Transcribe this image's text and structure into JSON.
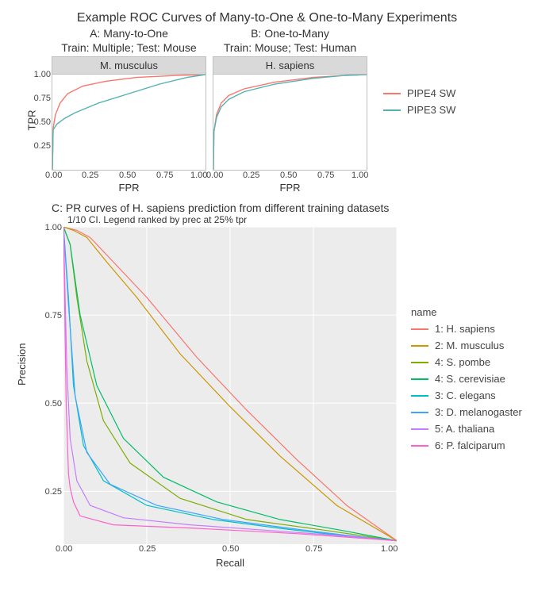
{
  "main_title": "Example ROC Curves of Many-to-One & One-to-Many Experiments",
  "panelA": {
    "header_line1": "A: Many-to-One",
    "header_line2": "Train: Multiple; Test: Mouse",
    "strip": "M. musculus",
    "xlab": "FPR",
    "xlim": [
      0,
      1
    ],
    "ylim": [
      0,
      1
    ],
    "xticks": [
      0.0,
      0.25,
      0.5,
      0.75,
      1.0
    ],
    "yticks": [
      0.25,
      0.5,
      0.75,
      1.0
    ],
    "series": {
      "pipe4": {
        "color": "#f8766d",
        "points": [
          [
            0,
            0
          ],
          [
            0.005,
            0.44
          ],
          [
            0.02,
            0.58
          ],
          [
            0.05,
            0.7
          ],
          [
            0.1,
            0.8
          ],
          [
            0.2,
            0.88
          ],
          [
            0.35,
            0.93
          ],
          [
            0.55,
            0.97
          ],
          [
            0.8,
            0.99
          ],
          [
            1.0,
            1.0
          ]
        ]
      },
      "pipe3": {
        "color": "#53b1b1",
        "points": [
          [
            0,
            0
          ],
          [
            0.005,
            0.42
          ],
          [
            0.03,
            0.48
          ],
          [
            0.08,
            0.54
          ],
          [
            0.15,
            0.6
          ],
          [
            0.3,
            0.7
          ],
          [
            0.5,
            0.8
          ],
          [
            0.7,
            0.9
          ],
          [
            0.88,
            0.97
          ],
          [
            1.0,
            1.0
          ]
        ]
      }
    }
  },
  "panelB": {
    "header_line1": "B: One-to-Many",
    "header_line2": "Train: Mouse; Test: Human",
    "strip": "H. sapiens",
    "xlab": "FPR",
    "xlim": [
      0,
      1
    ],
    "ylim": [
      0,
      1
    ],
    "xticks": [
      0.0,
      0.25,
      0.5,
      0.75,
      1.0
    ],
    "series": {
      "pipe4": {
        "color": "#f8766d",
        "points": [
          [
            0,
            0
          ],
          [
            0.003,
            0.4
          ],
          [
            0.02,
            0.58
          ],
          [
            0.05,
            0.7
          ],
          [
            0.1,
            0.78
          ],
          [
            0.2,
            0.85
          ],
          [
            0.4,
            0.92
          ],
          [
            0.65,
            0.97
          ],
          [
            0.85,
            0.99
          ],
          [
            1.0,
            1.0
          ]
        ]
      },
      "pipe3": {
        "color": "#53b1b1",
        "points": [
          [
            0,
            0
          ],
          [
            0.003,
            0.4
          ],
          [
            0.02,
            0.55
          ],
          [
            0.05,
            0.66
          ],
          [
            0.1,
            0.74
          ],
          [
            0.2,
            0.82
          ],
          [
            0.4,
            0.9
          ],
          [
            0.65,
            0.96
          ],
          [
            0.85,
            0.99
          ],
          [
            1.0,
            1.0
          ]
        ]
      }
    }
  },
  "roc_legend": [
    {
      "label": "PIPE4 SW",
      "color": "#f8766d"
    },
    {
      "label": "PIPE3 SW",
      "color": "#53b1b1"
    }
  ],
  "roc_ylab": "TPR",
  "panelC": {
    "title": "C: PR curves of H. sapiens prediction from different training datasets",
    "subtitle": "1/10 CI. Legend ranked by prec at 25% tpr",
    "xlab": "Recall",
    "ylab": "Precision",
    "xlim": [
      0,
      1
    ],
    "ylim": [
      0.1,
      1.0
    ],
    "xticks": [
      0.0,
      0.25,
      0.5,
      0.75,
      1.0
    ],
    "yticks": [
      0.25,
      0.5,
      0.75,
      1.0
    ],
    "grid_color": "#e6e6e6",
    "background": "#ececec",
    "legend_title": "name",
    "series": [
      {
        "label": "1: H. sapiens",
        "color": "#f8766d",
        "points": [
          [
            0,
            1.0
          ],
          [
            0.04,
            0.99
          ],
          [
            0.08,
            0.97
          ],
          [
            0.15,
            0.9
          ],
          [
            0.25,
            0.8
          ],
          [
            0.4,
            0.63
          ],
          [
            0.55,
            0.48
          ],
          [
            0.7,
            0.34
          ],
          [
            0.85,
            0.21
          ],
          [
            1.0,
            0.11
          ]
        ]
      },
      {
        "label": "2: M. musculus",
        "color": "#cd9600",
        "points": [
          [
            0,
            1.0
          ],
          [
            0.03,
            0.99
          ],
          [
            0.07,
            0.97
          ],
          [
            0.13,
            0.9
          ],
          [
            0.22,
            0.8
          ],
          [
            0.35,
            0.64
          ],
          [
            0.5,
            0.49
          ],
          [
            0.65,
            0.35
          ],
          [
            0.82,
            0.21
          ],
          [
            1.0,
            0.11
          ]
        ]
      },
      {
        "label": "4: S. pombe",
        "color": "#7cae00",
        "points": [
          [
            0,
            1.0
          ],
          [
            0.02,
            0.95
          ],
          [
            0.04,
            0.8
          ],
          [
            0.07,
            0.62
          ],
          [
            0.12,
            0.45
          ],
          [
            0.2,
            0.33
          ],
          [
            0.35,
            0.23
          ],
          [
            0.55,
            0.17
          ],
          [
            0.78,
            0.14
          ],
          [
            1.0,
            0.11
          ]
        ]
      },
      {
        "label": "4: S. cerevisiae",
        "color": "#00be67",
        "points": [
          [
            0,
            1.0
          ],
          [
            0.02,
            0.95
          ],
          [
            0.05,
            0.75
          ],
          [
            0.1,
            0.55
          ],
          [
            0.18,
            0.4
          ],
          [
            0.3,
            0.29
          ],
          [
            0.46,
            0.22
          ],
          [
            0.65,
            0.17
          ],
          [
            0.83,
            0.14
          ],
          [
            1.0,
            0.11
          ]
        ]
      },
      {
        "label": "3: C. elegans",
        "color": "#00bfc4",
        "points": [
          [
            0,
            1.0
          ],
          [
            0.015,
            0.8
          ],
          [
            0.03,
            0.55
          ],
          [
            0.06,
            0.38
          ],
          [
            0.12,
            0.28
          ],
          [
            0.25,
            0.21
          ],
          [
            0.45,
            0.17
          ],
          [
            0.65,
            0.145
          ],
          [
            0.83,
            0.125
          ],
          [
            1.0,
            0.11
          ]
        ]
      },
      {
        "label": "3: D. melanogaster",
        "color": "#3fa3ff",
        "points": [
          [
            0,
            1.0
          ],
          [
            0.015,
            0.78
          ],
          [
            0.035,
            0.52
          ],
          [
            0.07,
            0.36
          ],
          [
            0.14,
            0.27
          ],
          [
            0.28,
            0.21
          ],
          [
            0.48,
            0.17
          ],
          [
            0.68,
            0.145
          ],
          [
            0.85,
            0.125
          ],
          [
            1.0,
            0.11
          ]
        ]
      },
      {
        "label": "5: A. thaliana",
        "color": "#c77cff",
        "points": [
          [
            0,
            1.0
          ],
          [
            0.01,
            0.6
          ],
          [
            0.02,
            0.4
          ],
          [
            0.04,
            0.28
          ],
          [
            0.08,
            0.21
          ],
          [
            0.18,
            0.175
          ],
          [
            0.38,
            0.155
          ],
          [
            0.6,
            0.14
          ],
          [
            0.82,
            0.125
          ],
          [
            1.0,
            0.11
          ]
        ]
      },
      {
        "label": "6: P. falciparum",
        "color": "#ff61cc",
        "points": [
          [
            0,
            1.0
          ],
          [
            0.008,
            0.5
          ],
          [
            0.015,
            0.3
          ],
          [
            0.02,
            0.26
          ],
          [
            0.03,
            0.22
          ],
          [
            0.05,
            0.18
          ],
          [
            0.15,
            0.155
          ],
          [
            0.4,
            0.145
          ],
          [
            0.7,
            0.13
          ],
          [
            1.0,
            0.11
          ]
        ]
      }
    ]
  }
}
